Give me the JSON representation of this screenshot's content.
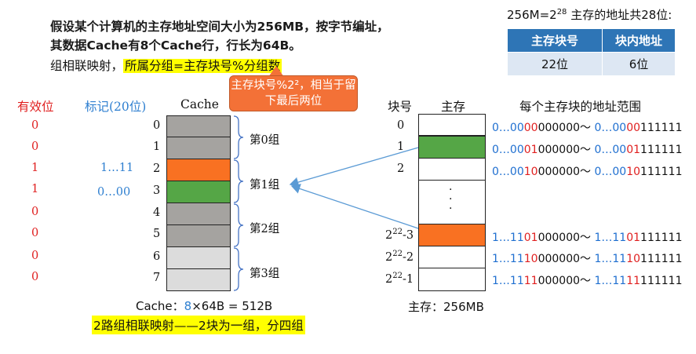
{
  "intro": "假设某个计算机的主存地址空间大小为256MB，按字节编址，其数据Cache有8个Cache行，行长为64B。",
  "mapping_prefix": "组相联映射，",
  "mapping_formula": "所属分组=主存块号%分组数",
  "callout": "主存块号%2²，相当于留下最后两位",
  "top_right": {
    "prefix": "256M=2",
    "exp": "28",
    "suffix": " 主存的地址共28位:"
  },
  "addr_table": {
    "headers": [
      "主存块号",
      "块内地址"
    ],
    "values": [
      "22位",
      "6位"
    ]
  },
  "col_headers": {
    "valid": "有效位",
    "tag": "标记(20位)",
    "cache": "Cache",
    "block_no": "块号",
    "memory": "主存",
    "range": "每个主存块的地址范围"
  },
  "valid_bits": [
    "0",
    "0",
    "1",
    "1",
    "0",
    "0",
    "0",
    "0"
  ],
  "tags": {
    "row2": "1…11",
    "row3": "0…00"
  },
  "cache_rows": [
    "0",
    "1",
    "2",
    "3",
    "4",
    "5",
    "6",
    "7"
  ],
  "groups": [
    "第0组",
    "第1组",
    "第2组",
    "第3组"
  ],
  "cache_footer": {
    "prefix": "Cache：",
    "num": "8",
    "rest": "×64B = 512B"
  },
  "bottom_note": "2路组相联映射——2块为一组，分四组",
  "mem_rows": {
    "r0": "0",
    "r1": "1",
    "r2": "2",
    "base": "2",
    "exp": "22",
    "r3suffix": "-3",
    "r4suffix": "-2",
    "r5suffix": "-1"
  },
  "dots": "·\n·\n·",
  "mem_footer": "主存：256MB",
  "ranges": [
    {
      "a1": "0…00",
      "a2": "00",
      "a3": "000000～ ",
      "b1": "0…00",
      "b2": "00",
      "b3": "111111"
    },
    {
      "a1": "0…00",
      "a2": "01",
      "a3": "000000～ ",
      "b1": "0…00",
      "b2": "01",
      "b3": "111111"
    },
    {
      "a1": "0…00",
      "a2": "10",
      "a3": "000000～ ",
      "b1": "0…00",
      "b2": "10",
      "b3": "111111"
    },
    {
      "a1": "1…11",
      "a2": "01",
      "a3": "000000～ ",
      "b1": "1…11",
      "b2": "01",
      "b3": "111111"
    },
    {
      "a1": "1…11",
      "a2": "10",
      "a3": "000000～ ",
      "b1": "1…11",
      "b2": "10",
      "b3": "111111"
    },
    {
      "a1": "1…11",
      "a2": "11",
      "a3": "000000～ ",
      "b1": "1…11",
      "b2": "11",
      "b3": "111111"
    }
  ],
  "colors": {
    "gray": "#a5a3a0",
    "light": "#dcdcdc",
    "orange": "#f97122",
    "green": "#55a646",
    "blue": "#1f6fd0",
    "red": "#e02020"
  }
}
